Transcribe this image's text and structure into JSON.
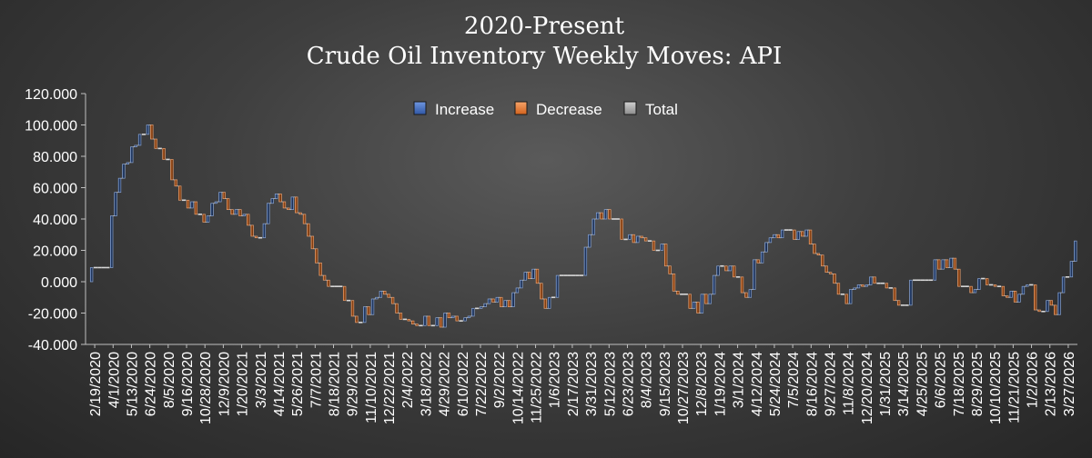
{
  "chart_data": {
    "type": "bar",
    "subtype": "waterfall",
    "title_line1": "2020-Present",
    "title_line2": "Crude Oil Inventory Weekly Moves:  API",
    "xlabel": "",
    "ylabel": "",
    "ylim": [
      -40,
      120
    ],
    "yticks": [
      -40,
      -20,
      0,
      20,
      40,
      60,
      80,
      100,
      120
    ],
    "ytick_labels": [
      "-40.000",
      "-20.000",
      "0.000",
      "20.000",
      "40.000",
      "60.000",
      "80.000",
      "100.000",
      "120.000"
    ],
    "xtick_labels": [
      "2/19/2020",
      "4/1/2020",
      "5/13/2020",
      "6/24/2020",
      "8/5/2020",
      "9/16/2020",
      "10/28/2020",
      "12/9/2020",
      "1/20/2021",
      "3/3/2021",
      "4/14/2021",
      "5/26/2021",
      "7/7/2021",
      "8/18/2021",
      "9/29/2021",
      "11/10/2021",
      "12/22/2021",
      "2/4/2022",
      "3/18/2022",
      "4/29/2022",
      "6/10/2022",
      "7/22/2022",
      "9/2/2022",
      "10/14/2022",
      "11/25/2022",
      "1/6/2023",
      "2/17/2023",
      "3/31/2023",
      "5/12/2023",
      "6/23/2023",
      "8/4/2023",
      "9/15/2023",
      "10/27/2023",
      "12/8/2023",
      "1/19/2024",
      "3/1/2024",
      "4/12/2024",
      "5/24/2024",
      "7/5/2024",
      "8/16/2024",
      "9/27/2024",
      "11/8/2024",
      "12/20/2024",
      "1/31/2025",
      "3/14/2025",
      "4/25/2025",
      "6/6/2025",
      "7/18/2025",
      "8/29/2025",
      "10/10/2025",
      "11/21/2025",
      "1/2/2026",
      "2/13/2026",
      "3/27/2026"
    ],
    "grid": false,
    "legend": {
      "position": "top-center",
      "entries": [
        {
          "name": "Increase",
          "color": "#4472C4"
        },
        {
          "name": "Decrease",
          "color": "#ED7D31"
        },
        {
          "name": "Total",
          "color": "#A5A5A5"
        }
      ]
    },
    "colors": {
      "increase": "#1f3864",
      "decrease": "#843c0c",
      "total": "#d9d9d9",
      "axis": "#bfbfbf",
      "text": "#ffffff"
    },
    "cumulative_levels": [
      0,
      9,
      9,
      9,
      9,
      9,
      42,
      57,
      66,
      75,
      76,
      86,
      87,
      94,
      94,
      100,
      91,
      85,
      85,
      78,
      78,
      65,
      61,
      52,
      52,
      47,
      51,
      43,
      43,
      38,
      42,
      50,
      51,
      57,
      53,
      46,
      43,
      46,
      42,
      43,
      36,
      29,
      28,
      28,
      37,
      50,
      53,
      56,
      51,
      47,
      46,
      54,
      44,
      43,
      37,
      29,
      21,
      12,
      4,
      1,
      -3,
      -3,
      -3,
      -3,
      -12,
      -12,
      -22,
      -26,
      -26,
      -16,
      -21,
      -11,
      -10,
      -6,
      -8,
      -10,
      -14,
      -20,
      -24,
      -24,
      -25,
      -27,
      -28,
      -28,
      -22,
      -28,
      -28,
      -23,
      -29,
      -20,
      -23,
      -22,
      -25,
      -25,
      -23,
      -22,
      -17,
      -17,
      -16,
      -14,
      -11,
      -13,
      -10,
      -16,
      -12,
      -16,
      -7,
      -4,
      1,
      6,
      2,
      8,
      -1,
      -11,
      -17,
      -10,
      -10,
      4,
      4,
      4,
      4,
      4,
      4,
      4,
      22,
      30,
      40,
      44,
      40,
      46,
      40,
      40,
      40,
      27,
      27,
      30,
      25,
      29,
      28,
      26,
      26,
      20,
      20,
      24,
      10,
      5,
      -6,
      -8,
      -8,
      -8,
      -17,
      -13,
      -20,
      -8,
      -14,
      -8,
      4,
      10,
      10,
      7,
      10,
      3,
      3,
      -7,
      -10,
      -5,
      14,
      12,
      19,
      25,
      28,
      30,
      28,
      33,
      33,
      33,
      27,
      32,
      29,
      33,
      24,
      18,
      17,
      10,
      6,
      5,
      -1,
      -8,
      -8,
      -14,
      -5,
      -4,
      -2,
      -3,
      -2,
      3,
      -1,
      -1,
      -1,
      -4,
      -4,
      -12,
      -15,
      -15,
      -15,
      1,
      1,
      1,
      1,
      1,
      1,
      14,
      8,
      14,
      9,
      15,
      8,
      -3,
      -3,
      -3,
      -7,
      -5,
      2,
      2,
      -2,
      -2,
      -3,
      -3,
      -9,
      -10,
      -6,
      -13,
      -8,
      -3,
      -2,
      -2,
      -18,
      -19,
      -19,
      -12,
      -15,
      -21,
      -7,
      3,
      3,
      13,
      26
    ]
  }
}
